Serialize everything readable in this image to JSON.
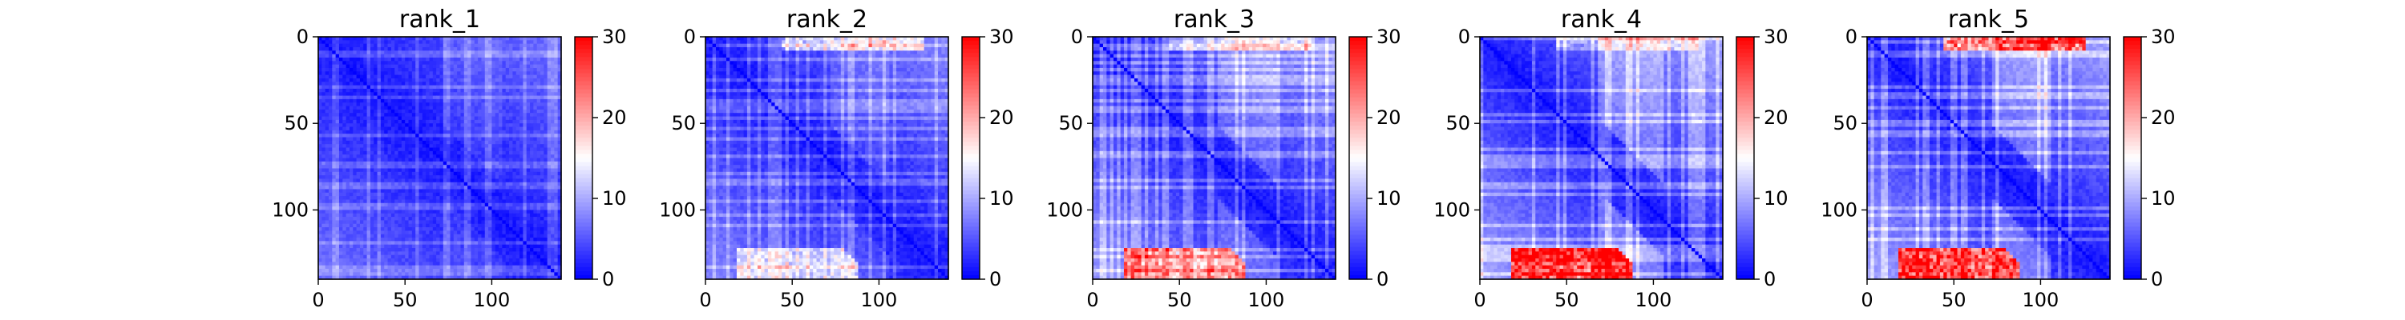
{
  "chart_data": [
    {
      "type": "heatmap",
      "title": "rank_1",
      "xlim": [
        0,
        140
      ],
      "ylim": [
        0,
        140
      ],
      "xticks": [
        0,
        50,
        100
      ],
      "yticks": [
        0,
        50,
        100
      ],
      "colorbar": {
        "min": 0,
        "max": 30,
        "ticks": [
          0,
          10,
          20,
          30
        ],
        "cmap": "bwr"
      },
      "pattern": {
        "base": 4.5,
        "bottom_red": 0.0,
        "top_red": 0.0,
        "mid_white": 0.25
      }
    },
    {
      "type": "heatmap",
      "title": "rank_2",
      "xlim": [
        0,
        140
      ],
      "ylim": [
        0,
        140
      ],
      "xticks": [
        0,
        50,
        100
      ],
      "yticks": [
        0,
        50,
        100
      ],
      "colorbar": {
        "min": 0,
        "max": 30,
        "ticks": [
          0,
          10,
          20,
          30
        ],
        "cmap": "bwr"
      },
      "pattern": {
        "base": 5.5,
        "bottom_red": 0.35,
        "top_red": 0.45,
        "mid_white": 0.3
      }
    },
    {
      "type": "heatmap",
      "title": "rank_3",
      "xlim": [
        0,
        140
      ],
      "ylim": [
        0,
        140
      ],
      "xticks": [
        0,
        50,
        100
      ],
      "yticks": [
        0,
        50,
        100
      ],
      "colorbar": {
        "min": 0,
        "max": 30,
        "ticks": [
          0,
          10,
          20,
          30
        ],
        "cmap": "bwr"
      },
      "pattern": {
        "base": 6.5,
        "bottom_red": 0.6,
        "top_red": 0.3,
        "mid_white": 0.45
      }
    },
    {
      "type": "heatmap",
      "title": "rank_4",
      "xlim": [
        0,
        140
      ],
      "ylim": [
        0,
        140
      ],
      "xticks": [
        0,
        50,
        100
      ],
      "yticks": [
        0,
        50,
        100
      ],
      "colorbar": {
        "min": 0,
        "max": 30,
        "ticks": [
          0,
          10,
          20,
          30
        ],
        "cmap": "bwr"
      },
      "pattern": {
        "base": 7.0,
        "bottom_red": 0.9,
        "top_red": 0.3,
        "mid_white": 0.55
      }
    },
    {
      "type": "heatmap",
      "title": "rank_5",
      "xlim": [
        0,
        140
      ],
      "ylim": [
        0,
        140
      ],
      "xticks": [
        0,
        50,
        100
      ],
      "yticks": [
        0,
        50,
        100
      ],
      "colorbar": {
        "min": 0,
        "max": 30,
        "ticks": [
          0,
          10,
          20,
          30
        ],
        "cmap": "bwr"
      },
      "pattern": {
        "base": 7.0,
        "bottom_red": 0.9,
        "top_red": 0.9,
        "mid_white": 0.5
      }
    }
  ]
}
